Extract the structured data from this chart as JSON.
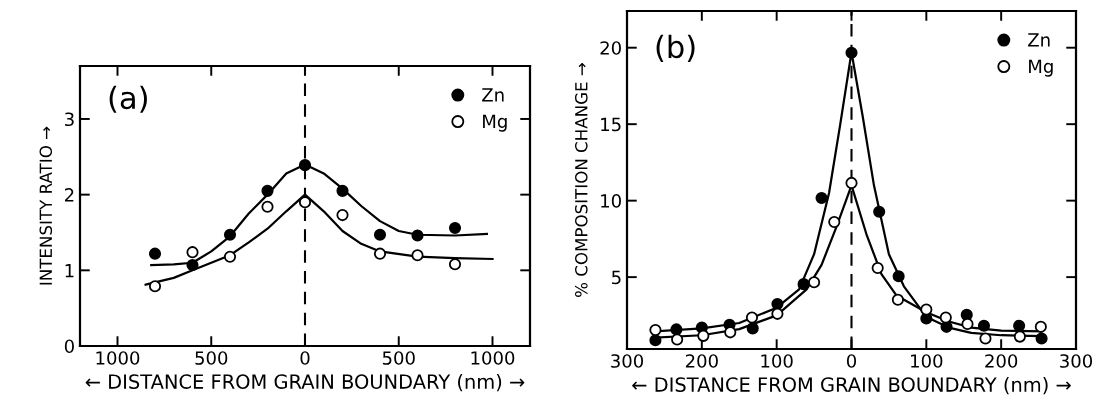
{
  "chart_data": [
    {
      "type": "scatter",
      "annotations": [
        "(a)"
      ],
      "xlabel": "← DISTANCE FROM GRAIN BOUNDARY (nm) →",
      "ylabel": "INTENSITY RATIO →",
      "xlim": [
        -1200,
        1200
      ],
      "ylim": [
        0,
        3.7
      ],
      "xticks": [
        {
          "value": -1000,
          "label": "1000"
        },
        {
          "value": -500,
          "label": "500"
        },
        0,
        {
          "value": 500,
          "label": "500"
        },
        {
          "value": 1000,
          "label": "1000"
        }
      ],
      "yticks": [
        0,
        1,
        2,
        3
      ],
      "grid": false,
      "legend": "top right",
      "ref_lines": [
        {
          "axis": "x",
          "value": 0,
          "color": "#000000",
          "line_style": "dashed"
        }
      ],
      "series": [
        {
          "name": "Zn",
          "marker": "circle",
          "color": "#000000",
          "x": [
            -800,
            -600,
            -400,
            -200,
            0,
            200,
            400,
            600,
            800
          ],
          "values": [
            1.22,
            1.07,
            1.47,
            2.05,
            2.39,
            2.05,
            1.47,
            1.46,
            1.56
          ]
        },
        {
          "name": "Mg",
          "marker": "circle",
          "color": "#ffffff",
          "x": [
            -800,
            -600,
            -400,
            -200,
            0,
            200,
            400,
            600,
            800
          ],
          "values": [
            0.79,
            1.24,
            1.18,
            1.84,
            1.9,
            1.73,
            1.22,
            1.2,
            1.08
          ]
        },
        {
          "type": "line",
          "color": "#000000",
          "x": [
            -820,
            -700,
            -600,
            -500,
            -400,
            -300,
            -200,
            -100,
            0,
            100,
            200,
            300,
            400,
            500,
            600,
            800,
            970
          ],
          "values": [
            1.07,
            1.08,
            1.1,
            1.25,
            1.45,
            1.75,
            2.0,
            2.28,
            2.4,
            2.28,
            2.08,
            1.85,
            1.65,
            1.52,
            1.47,
            1.46,
            1.48
          ]
        },
        {
          "type": "line",
          "color": "#000000",
          "x": [
            -850,
            -700,
            -600,
            -500,
            -400,
            -300,
            -200,
            -100,
            0,
            100,
            200,
            300,
            400,
            600,
            800,
            1000
          ],
          "values": [
            0.81,
            0.9,
            1.0,
            1.1,
            1.2,
            1.37,
            1.55,
            1.78,
            2.0,
            1.78,
            1.52,
            1.35,
            1.25,
            1.18,
            1.16,
            1.15
          ]
        }
      ]
    },
    {
      "type": "scatter",
      "annotations": [
        "(b)"
      ],
      "xlabel": "← DISTANCE FROM GRAIN BOUNDARY (nm) →",
      "ylabel": "% COMPOSITION CHANGE →",
      "xlim": [
        -300,
        300
      ],
      "ylim": [
        0.3,
        22.4
      ],
      "xticks": [
        {
          "value": -300,
          "label": "300"
        },
        {
          "value": -200,
          "label": "200"
        },
        {
          "value": -100,
          "label": "100"
        },
        0,
        {
          "value": 100,
          "label": "100"
        },
        {
          "value": 200,
          "label": "200"
        },
        {
          "value": 300,
          "label": "300"
        }
      ],
      "yticks": [
        5,
        10,
        15,
        20
      ],
      "grid": false,
      "legend": "top right",
      "ref_lines": [
        {
          "axis": "x",
          "value": 0,
          "color": "#000000",
          "line_style": "dashed"
        }
      ],
      "series": [
        {
          "name": "Zn",
          "marker": "circle",
          "color": "#000000",
          "x": [
            -262,
            -234,
            -200,
            -163,
            -132,
            -99,
            -64,
            -40,
            0,
            37,
            63,
            100,
            127,
            154,
            177,
            224,
            254
          ],
          "values": [
            0.87,
            1.58,
            1.7,
            1.89,
            1.65,
            3.24,
            4.54,
            10.17,
            19.67,
            9.27,
            5.06,
            2.29,
            1.75,
            2.53,
            1.82,
            1.82,
            0.99
          ]
        },
        {
          "name": "Mg",
          "marker": "circle",
          "color": "#ffffff",
          "x": [
            -262,
            -233,
            -198,
            -162,
            -133,
            -99,
            -50,
            -23,
            0,
            35,
            62,
            100,
            126,
            155,
            179,
            225,
            253
          ],
          "values": [
            1.54,
            0.92,
            1.16,
            1.39,
            2.36,
            2.6,
            4.66,
            8.6,
            11.16,
            5.6,
            3.52,
            2.88,
            2.36,
            1.94,
            0.99,
            1.11,
            1.75
          ]
        },
        {
          "type": "line",
          "color": "#000000",
          "x": [
            -262,
            -200,
            -150,
            -100,
            -70,
            -50,
            -30,
            -15,
            0,
            15,
            30,
            50,
            70,
            100,
            130,
            160,
            200,
            254
          ],
          "values": [
            1.45,
            1.65,
            2.0,
            3.0,
            4.2,
            6.5,
            10.5,
            15,
            19.7,
            15.5,
            11,
            6.5,
            4.4,
            2.4,
            1.7,
            1.35,
            1.2,
            1.15
          ]
        },
        {
          "type": "line",
          "color": "#000000",
          "x": [
            -262,
            -200,
            -150,
            -100,
            -60,
            -40,
            -20,
            0,
            20,
            40,
            60,
            100,
            130,
            160,
            200,
            254
          ],
          "values": [
            1.05,
            1.2,
            1.6,
            2.5,
            4.2,
            5.8,
            8.3,
            11.0,
            7.8,
            5.2,
            3.8,
            2.7,
            2.1,
            1.7,
            1.5,
            1.45
          ]
        }
      ]
    }
  ]
}
